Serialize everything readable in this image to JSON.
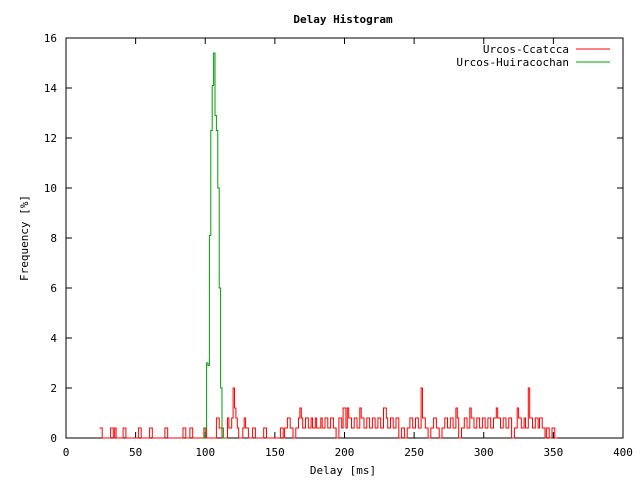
{
  "chart_data": {
    "type": "line",
    "title": "Delay Histogram",
    "xlabel": "Delay [ms]",
    "ylabel": "Frequency [%]",
    "xlim": [
      0,
      400
    ],
    "ylim": [
      0,
      16
    ],
    "xticks": [
      0,
      50,
      100,
      150,
      200,
      250,
      300,
      350,
      400
    ],
    "yticks": [
      0,
      2,
      4,
      6,
      8,
      10,
      12,
      14,
      16
    ],
    "grid": false,
    "legend_position": "top-right",
    "series": [
      {
        "name": "Urcos-Ccatcca",
        "color": "#ff0000",
        "style": "step",
        "points": [
          [
            24,
            0.4
          ],
          [
            26,
            0
          ],
          [
            32,
            0.4
          ],
          [
            34,
            0
          ],
          [
            35,
            0.4
          ],
          [
            36,
            0
          ],
          [
            41,
            0.4
          ],
          [
            43,
            0
          ],
          [
            52,
            0.4
          ],
          [
            54,
            0
          ],
          [
            60,
            0.4
          ],
          [
            62,
            0
          ],
          [
            71,
            0.4
          ],
          [
            73,
            0
          ],
          [
            84,
            0.4
          ],
          [
            86,
            0
          ],
          [
            89,
            0.4
          ],
          [
            91,
            0
          ],
          [
            99,
            0.4
          ],
          [
            101,
            0
          ],
          [
            108,
            0.8
          ],
          [
            110,
            0.4
          ],
          [
            112,
            0
          ],
          [
            116,
            0.8
          ],
          [
            117,
            0.4
          ],
          [
            119,
            0.8
          ],
          [
            120,
            2.0
          ],
          [
            121,
            1.2
          ],
          [
            122,
            0.8
          ],
          [
            123,
            0.4
          ],
          [
            124,
            0
          ],
          [
            127,
            0.4
          ],
          [
            128,
            0.8
          ],
          [
            129,
            0.4
          ],
          [
            131,
            0
          ],
          [
            134,
            0.4
          ],
          [
            136,
            0
          ],
          [
            142,
            0.4
          ],
          [
            144,
            0
          ],
          [
            154,
            0.4
          ],
          [
            156,
            0
          ],
          [
            157,
            0.4
          ],
          [
            159,
            0.8
          ],
          [
            161,
            0.4
          ],
          [
            163,
            0
          ],
          [
            165,
            0.4
          ],
          [
            167,
            0.8
          ],
          [
            168,
            1.2
          ],
          [
            169,
            0.8
          ],
          [
            170,
            0.4
          ],
          [
            172,
            0.8
          ],
          [
            174,
            0.4
          ],
          [
            176,
            0.8
          ],
          [
            177,
            0.4
          ],
          [
            179,
            0.8
          ],
          [
            180,
            0.4
          ],
          [
            183,
            0.8
          ],
          [
            184,
            0.4
          ],
          [
            186,
            0.8
          ],
          [
            188,
            0.4
          ],
          [
            190,
            0.8
          ],
          [
            192,
            0.4
          ],
          [
            194,
            0
          ],
          [
            196,
            0.8
          ],
          [
            198,
            0.4
          ],
          [
            199,
            1.2
          ],
          [
            201,
            0.4
          ],
          [
            202,
            1.2
          ],
          [
            203,
            0.8
          ],
          [
            205,
            0.4
          ],
          [
            207,
            0.8
          ],
          [
            209,
            0.4
          ],
          [
            211,
            1.2
          ],
          [
            212,
            0.8
          ],
          [
            214,
            0.4
          ],
          [
            216,
            0.8
          ],
          [
            218,
            0.4
          ],
          [
            220,
            0.8
          ],
          [
            222,
            0.4
          ],
          [
            224,
            0.8
          ],
          [
            226,
            0.4
          ],
          [
            228,
            1.2
          ],
          [
            230,
            0.8
          ],
          [
            231,
            0.4
          ],
          [
            233,
            0.8
          ],
          [
            235,
            0.4
          ],
          [
            237,
            0.8
          ],
          [
            239,
            0
          ],
          [
            241,
            0.4
          ],
          [
            243,
            0
          ],
          [
            245,
            0.4
          ],
          [
            247,
            0.8
          ],
          [
            249,
            0.4
          ],
          [
            251,
            0.8
          ],
          [
            253,
            0.4
          ],
          [
            255,
            2.0
          ],
          [
            256,
            0.8
          ],
          [
            258,
            0.4
          ],
          [
            260,
            0
          ],
          [
            262,
            0.4
          ],
          [
            264,
            0.8
          ],
          [
            266,
            0.4
          ],
          [
            268,
            0
          ],
          [
            270,
            0.4
          ],
          [
            272,
            0.8
          ],
          [
            274,
            0.4
          ],
          [
            276,
            0.8
          ],
          [
            278,
            0.4
          ],
          [
            280,
            1.2
          ],
          [
            281,
            0.8
          ],
          [
            282,
            0
          ],
          [
            284,
            0.4
          ],
          [
            286,
            0.8
          ],
          [
            288,
            0.4
          ],
          [
            290,
            1.2
          ],
          [
            291,
            0.8
          ],
          [
            293,
            0.4
          ],
          [
            295,
            0.8
          ],
          [
            297,
            0.4
          ],
          [
            299,
            0.8
          ],
          [
            301,
            0.4
          ],
          [
            303,
            0.8
          ],
          [
            305,
            0.4
          ],
          [
            307,
            0.8
          ],
          [
            309,
            1.2
          ],
          [
            310,
            0.8
          ],
          [
            312,
            0.4
          ],
          [
            314,
            0.8
          ],
          [
            316,
            0.4
          ],
          [
            318,
            0.8
          ],
          [
            320,
            0
          ],
          [
            322,
            0.4
          ],
          [
            324,
            1.2
          ],
          [
            325,
            0.8
          ],
          [
            327,
            0.4
          ],
          [
            329,
            0.8
          ],
          [
            330,
            0.4
          ],
          [
            332,
            2.0
          ],
          [
            333,
            0.8
          ],
          [
            335,
            0.4
          ],
          [
            337,
            0.8
          ],
          [
            339,
            0.4
          ],
          [
            340,
            0.8
          ],
          [
            342,
            0.4
          ],
          [
            344,
            0
          ],
          [
            345,
            0.4
          ],
          [
            347,
            0
          ],
          [
            349,
            0.4
          ],
          [
            351,
            0
          ],
          [
            353,
            0
          ]
        ]
      },
      {
        "name": "Urcos-Huiracochan",
        "color": "#00a000",
        "style": "step",
        "points": [
          [
            98,
            0
          ],
          [
            100,
            0.4
          ],
          [
            101,
            3.0
          ],
          [
            102,
            2.9
          ],
          [
            103,
            8.1
          ],
          [
            104,
            12.3
          ],
          [
            105,
            14.1
          ],
          [
            106,
            15.4
          ],
          [
            107,
            12.9
          ],
          [
            108,
            12.3
          ],
          [
            109,
            10.0
          ],
          [
            110,
            6.0
          ],
          [
            111,
            2.0
          ],
          [
            112,
            0.4
          ],
          [
            113,
            0
          ],
          [
            115,
            0
          ]
        ]
      }
    ]
  }
}
